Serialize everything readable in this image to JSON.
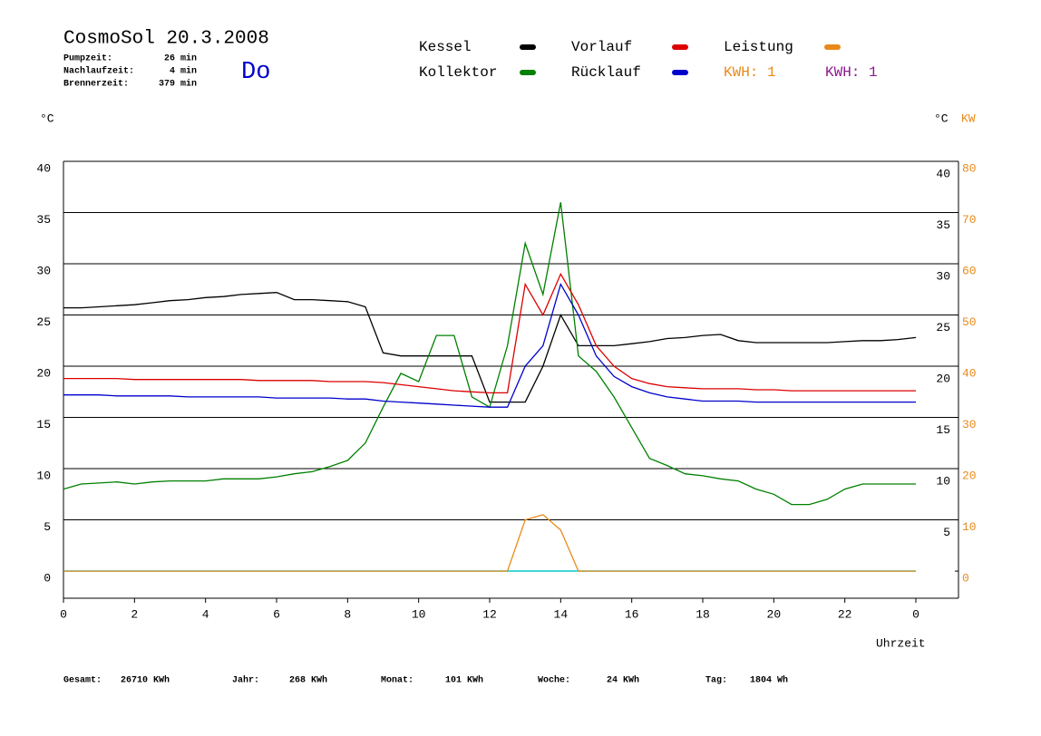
{
  "chart_data": {
    "type": "line",
    "title": "CosmoSol 20.3.2008",
    "day": "Do",
    "info": [
      [
        "Pumpzeit:",
        "26 min"
      ],
      [
        "Nachlaufzeit:",
        "4 min"
      ],
      [
        "Brennerzeit:",
        "379 min"
      ]
    ],
    "y_label": "°C",
    "y_right_label": "°C",
    "y2_label": "KW",
    "x_label": "Uhrzeit",
    "legend_notes": [
      {
        "text": "KWH: 1",
        "color": "#e88a1a"
      },
      {
        "text": "KWH: 1",
        "color": "#8b1a8b"
      }
    ],
    "stats": [
      [
        "Gesamt:",
        "26710 KWh"
      ],
      [
        "Jahr:",
        "268 KWh"
      ],
      [
        "Monat:",
        "101 KWh"
      ],
      [
        "Woche:",
        "24 KWh"
      ],
      [
        "Tag:",
        "1804 Wh"
      ]
    ],
    "x": [
      0,
      0.5,
      1,
      1.5,
      2,
      2.5,
      3,
      3.5,
      4,
      4.5,
      5,
      5.5,
      6,
      6.5,
      7,
      7.5,
      8,
      8.5,
      9,
      9.5,
      10,
      10.5,
      11,
      11.5,
      12,
      12.5,
      13,
      13.5,
      14,
      14.5,
      15,
      15.5,
      16,
      16.5,
      17,
      17.5,
      18,
      18.5,
      19,
      19.5,
      20,
      20.5,
      21,
      21.5,
      22,
      22.5,
      23,
      23.5,
      24
    ],
    "series": [
      {
        "name": "Kessel",
        "color": "#000000",
        "values": [
          25.7,
          25.7,
          25.8,
          25.9,
          26,
          26.2,
          26.4,
          26.5,
          26.7,
          26.8,
          27,
          27.1,
          27.2,
          26.5,
          26.5,
          26.4,
          26.3,
          25.8,
          21.3,
          21,
          21,
          21,
          21,
          21,
          16.5,
          16.5,
          16.5,
          20,
          25,
          22,
          22,
          22,
          22.2,
          22.4,
          22.7,
          22.8,
          23,
          23.1,
          22.5,
          22.3,
          22.3,
          22.3,
          22.3,
          22.3,
          22.4,
          22.5,
          22.5,
          22.6,
          22.8
        ]
      },
      {
        "name": "Kollektor",
        "color": "#008000",
        "values": [
          8,
          8.5,
          8.6,
          8.7,
          8.5,
          8.7,
          8.8,
          8.8,
          8.8,
          9,
          9,
          9,
          9.2,
          9.5,
          9.7,
          10.2,
          10.8,
          12.5,
          16,
          19.3,
          18.5,
          23,
          23,
          17,
          16,
          22,
          32,
          27,
          36,
          21,
          19.5,
          17,
          14,
          11,
          10.3,
          9.5,
          9.3,
          9,
          8.8,
          8,
          7.5,
          6.5,
          6.5,
          7,
          8,
          8.5,
          8.5,
          8.5,
          8.5
        ]
      },
      {
        "name": "Vorlauf",
        "color": "#dd0000",
        "values": [
          18.8,
          18.8,
          18.8,
          18.8,
          18.7,
          18.7,
          18.7,
          18.7,
          18.7,
          18.7,
          18.7,
          18.6,
          18.6,
          18.6,
          18.6,
          18.5,
          18.5,
          18.5,
          18.4,
          18.2,
          18,
          17.8,
          17.6,
          17.5,
          17.4,
          17.4,
          28,
          25,
          29,
          26,
          22,
          20,
          18.8,
          18.3,
          18,
          17.9,
          17.8,
          17.8,
          17.8,
          17.7,
          17.7,
          17.6,
          17.6,
          17.6,
          17.6,
          17.6,
          17.6,
          17.6,
          17.6
        ]
      },
      {
        "name": "Rücklauf",
        "color": "#0000cc",
        "values": [
          17.2,
          17.2,
          17.2,
          17.1,
          17.1,
          17.1,
          17.1,
          17,
          17,
          17,
          17,
          17,
          16.9,
          16.9,
          16.9,
          16.9,
          16.8,
          16.8,
          16.6,
          16.5,
          16.4,
          16.3,
          16.2,
          16.1,
          16,
          16,
          20,
          22,
          28,
          25,
          21,
          19,
          18,
          17.4,
          17,
          16.8,
          16.6,
          16.6,
          16.6,
          16.5,
          16.5,
          16.5,
          16.5,
          16.5,
          16.5,
          16.5,
          16.5,
          16.5,
          16.5
        ]
      },
      {
        "name": "Leistung",
        "color": "#e88a1a",
        "axis": "y2",
        "values": [
          0,
          0,
          0,
          0,
          0,
          0,
          0,
          0,
          0,
          0,
          0,
          0,
          0,
          0,
          0,
          0,
          0,
          0,
          0,
          0,
          0,
          0,
          0,
          0,
          0,
          0,
          10,
          11,
          8,
          0,
          0,
          0,
          0,
          0,
          0,
          0,
          0,
          0,
          0,
          0,
          0,
          0,
          0,
          0,
          0,
          0,
          0,
          0,
          0
        ]
      }
    ],
    "xlim": [
      0,
      25.2
    ],
    "xticks": [
      0,
      2,
      4,
      6,
      8,
      10,
      12,
      14,
      16,
      18,
      20,
      22,
      {
        "value": 24,
        "label": "0"
      }
    ],
    "ylim": [
      -2.65,
      40
    ],
    "yticks": [
      0,
      5,
      10,
      15,
      20,
      25,
      30,
      35,
      40
    ],
    "yticks_right": [
      5,
      10,
      15,
      20,
      25,
      30,
      35,
      40
    ],
    "y2lim": [
      -5.3,
      80
    ],
    "y2ticks": [
      0,
      10,
      20,
      30,
      40,
      50,
      60,
      70,
      80
    ],
    "grid": true
  }
}
